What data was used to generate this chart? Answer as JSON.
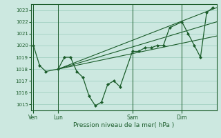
{
  "background_color": "#cce8e0",
  "grid_color": "#99ccbb",
  "line_color": "#1a5c2a",
  "title": "Pression niveau de la mer( hPa )",
  "ylim": [
    1014.5,
    1023.5
  ],
  "yticks": [
    1015,
    1016,
    1017,
    1018,
    1019,
    1020,
    1021,
    1022,
    1023
  ],
  "xtick_labels": [
    "Ven",
    "Lun",
    "Sam",
    "Dim"
  ],
  "xtick_pos": [
    0,
    2,
    8,
    12
  ],
  "xlim": [
    -0.2,
    14.8
  ],
  "vline_pos": [
    0,
    2,
    8,
    12
  ],
  "series1_x": [
    0,
    0.5,
    1.0,
    2.0,
    2.5,
    3.0,
    3.5,
    4.0,
    4.5,
    5.0,
    5.5,
    6.0,
    6.5,
    7.0,
    8.0,
    8.5,
    9.0,
    9.5,
    10.0,
    10.5,
    11.0,
    12.0,
    12.5,
    13.0,
    13.5,
    14.0,
    14.5
  ],
  "series1_y": [
    1020.0,
    1018.3,
    1017.8,
    1018.0,
    1019.0,
    1019.0,
    1017.8,
    1017.3,
    1015.7,
    1014.9,
    1015.2,
    1016.7,
    1017.0,
    1016.5,
    1019.5,
    1019.5,
    1019.8,
    1019.8,
    1020.0,
    1020.0,
    1021.5,
    1022.0,
    1021.0,
    1020.0,
    1019.0,
    1022.8,
    1023.2
  ],
  "series2_x": [
    2.0,
    14.8
  ],
  "series2_y": [
    1018.0,
    1023.2
  ],
  "series3_x": [
    2.0,
    14.8
  ],
  "series3_y": [
    1018.0,
    1022.0
  ],
  "series4_x": [
    2.0,
    14.8
  ],
  "series4_y": [
    1018.0,
    1020.8
  ]
}
